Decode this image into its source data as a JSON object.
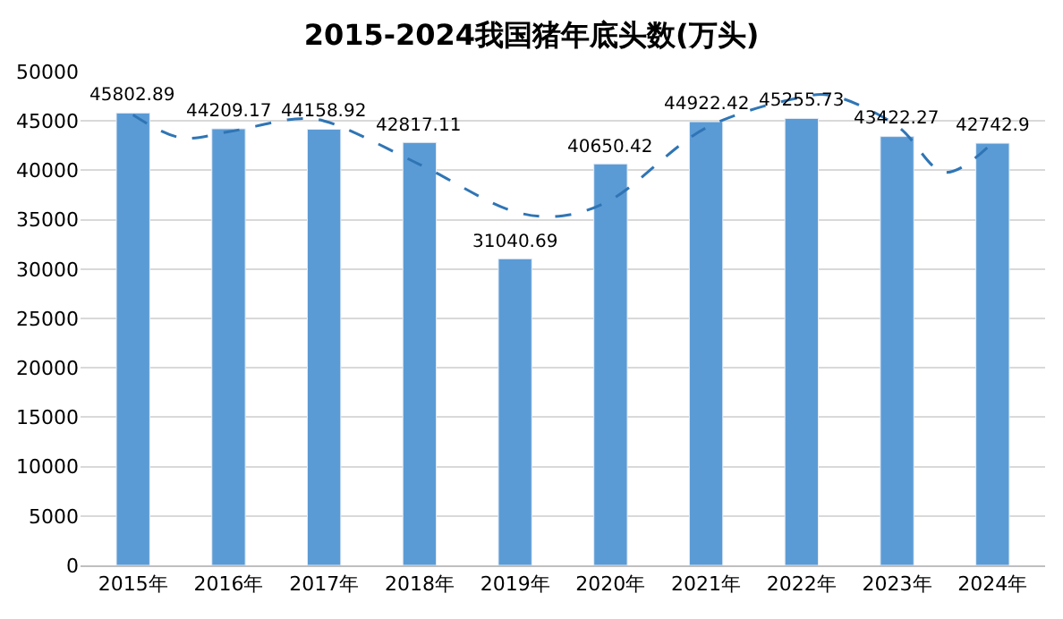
{
  "chart_data": {
    "type": "bar",
    "title": "2015-2024我国猪年底头数(万头)",
    "x": [
      2015,
      2016,
      2017,
      2018,
      2019,
      2020,
      2021,
      2022,
      2023,
      2024
    ],
    "xlim": [
      2014.45,
      2024.55
    ],
    "xticks": [
      {
        "value": 2015,
        "label": "2015年"
      },
      {
        "value": 2016,
        "label": "2016年"
      },
      {
        "value": 2017,
        "label": "2017年"
      },
      {
        "value": 2018,
        "label": "2018年"
      },
      {
        "value": 2019,
        "label": "2019年"
      },
      {
        "value": 2020,
        "label": "2020年"
      },
      {
        "value": 2021,
        "label": "2021年"
      },
      {
        "value": 2022,
        "label": "2022年"
      },
      {
        "value": 2023,
        "label": "2023年"
      },
      {
        "value": 2024,
        "label": "2024年"
      }
    ],
    "series": [
      {
        "color": "#5b9bd5",
        "values": [
          45802.89,
          44209.17,
          44158.92,
          42817.11,
          31040.69,
          40650.42,
          44922.42,
          45255.73,
          43422.27,
          42742.9
        ],
        "value_labels": [
          "45802.89",
          "44209.17",
          "44158.92",
          "42817.11",
          "31040.69",
          "40650.42",
          "44922.42",
          "45255.73",
          "43422.27",
          "42742.9"
        ]
      },
      {
        "type": "line",
        "color": "#2f75b5",
        "line_style": "dashed",
        "marker": "none",
        "x": [
          2015,
          2015.5,
          2016,
          2016.7,
          2017,
          2018,
          2019,
          2019.5,
          2020,
          2021,
          2022,
          2022.3,
          2023,
          2023.5,
          2024
        ],
        "values": [
          45600,
          43300,
          43900,
          45200,
          45000,
          40600,
          35800,
          35400,
          37000,
          44300,
          47400,
          47600,
          44500,
          39800,
          42800
        ]
      }
    ],
    "ylim": [
      0,
      50000
    ],
    "yticks": [
      0,
      5000,
      10000,
      15000,
      20000,
      25000,
      30000,
      35000,
      40000,
      45000,
      50000
    ],
    "grid": "y"
  }
}
